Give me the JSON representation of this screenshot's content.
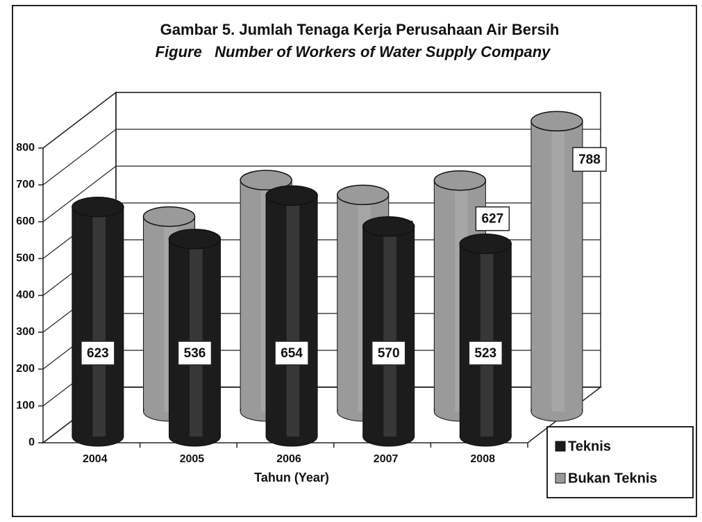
{
  "chart_data": {
    "type": "bar",
    "title": "Gambar 5. Jumlah Tenaga Kerja Perusahaan Air Bersih",
    "subtitle": "Figure   Number of Workers of Water Supply Company",
    "x_label": "Tahun (Year)",
    "categories": [
      "2004",
      "2005",
      "2006",
      "2007",
      "2008"
    ],
    "series": [
      {
        "name": "Teknis",
        "color": "#1c1c1c",
        "values": [
          623,
          536,
          654,
          570,
          523
        ]
      },
      {
        "name": "Bukan Teknis",
        "color": "#9a9a9a",
        "values": [
          529,
          628,
          588,
          627,
          788
        ]
      }
    ],
    "ylim": [
      0,
      800
    ],
    "yticks": [
      0,
      100,
      200,
      300,
      400,
      500,
      600,
      700,
      800
    ],
    "grid": true,
    "legend": "lower right"
  }
}
